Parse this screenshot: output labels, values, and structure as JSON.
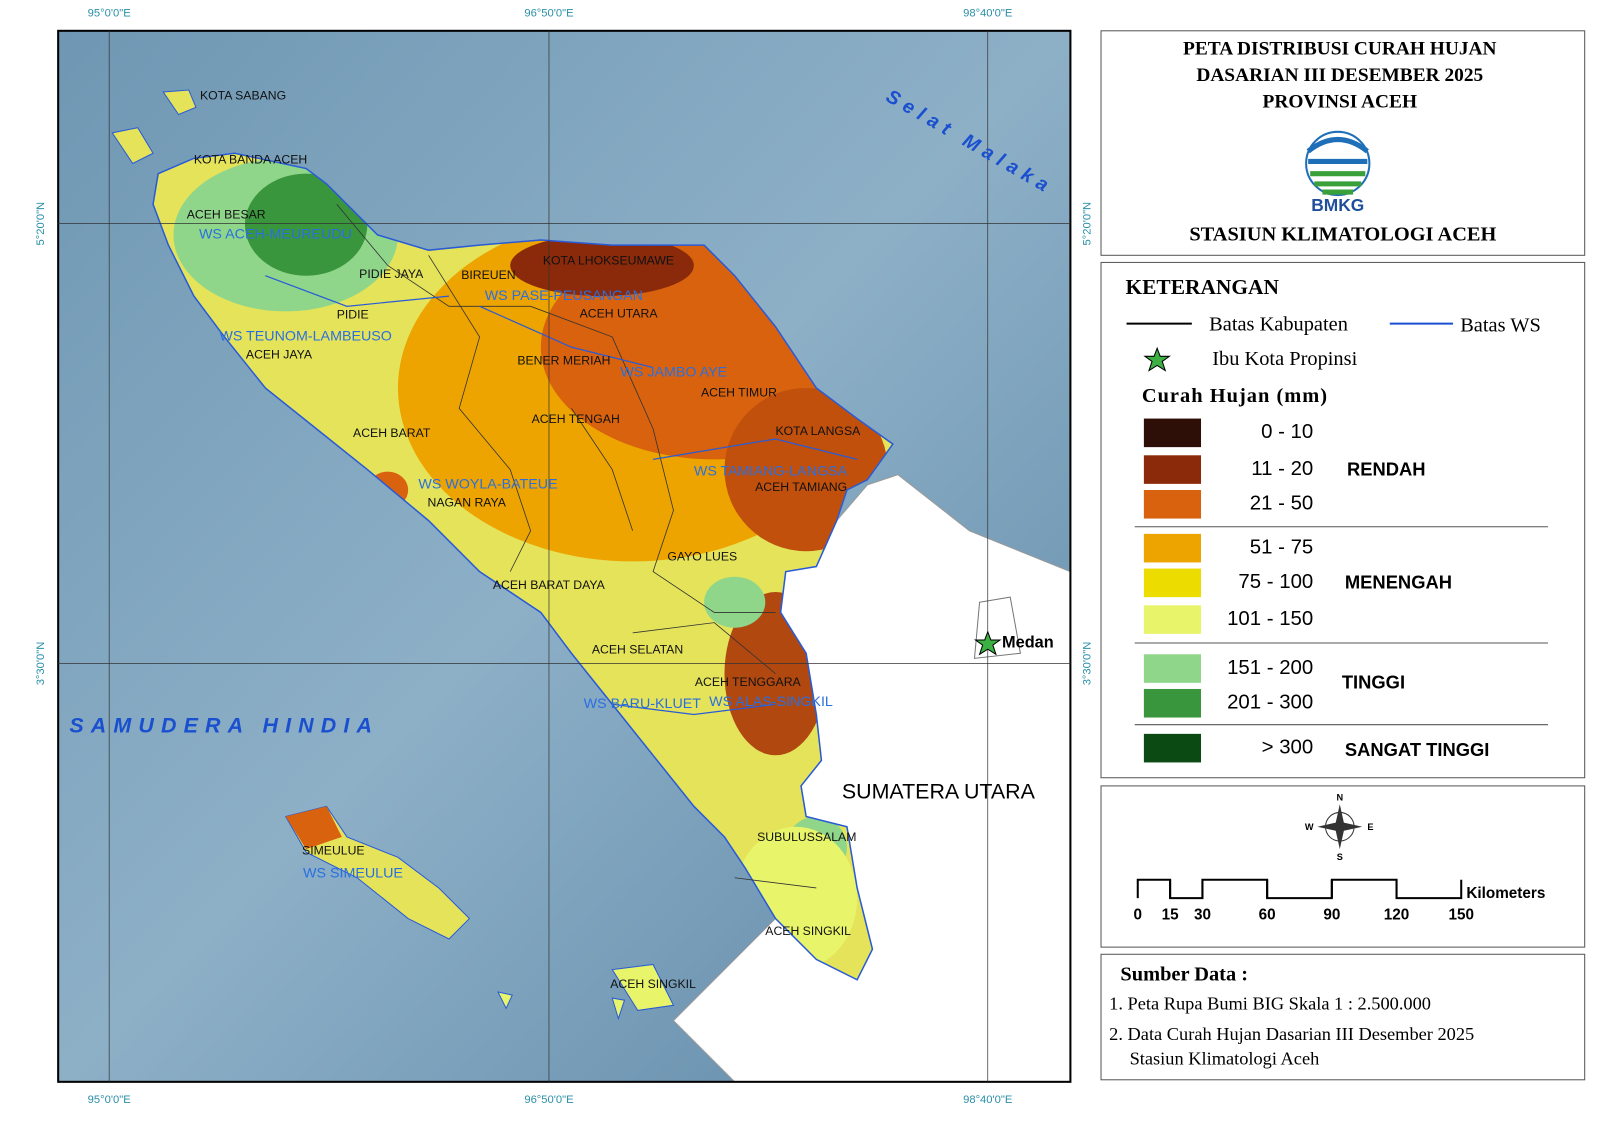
{
  "title": {
    "lines": [
      "PETA DISTRIBUSI CURAH HUJAN",
      "DASARIAN III DESEMBER 2025",
      "PROVINSI ACEH"
    ],
    "logo_text": "BMKG",
    "station": "STASIUN KLIMATOLOGI ACEH"
  },
  "graticule": {
    "longitudes": [
      "95°0'0\"E",
      "96°50'0\"E",
      "98°40'0\"E"
    ],
    "latitudes": [
      "5°20'0\"N",
      "3°30'0\"N"
    ]
  },
  "map_labels": {
    "seas": [
      "Selat Malaka",
      "SAMUDERA HINDIA"
    ],
    "regencies": [
      "KOTA SABANG",
      "KOTA BANDA ACEH",
      "ACEH BESAR",
      "PIDIE JAYA",
      "PIDIE",
      "BIREUEN",
      "KOTA LHOKSEUMAWE",
      "ACEH UTARA",
      "ACEH JAYA",
      "BENER MERIAH",
      "ACEH TIMUR",
      "ACEH TENGAH",
      "ACEH BARAT",
      "KOTA LANGSA",
      "ACEH TAMIANG",
      "NAGAN RAYA",
      "GAYO LUES",
      "ACEH BARAT DAYA",
      "ACEH SELATAN",
      "ACEH TENGGARA",
      "SIMEULUE",
      "SUBULUSSALAM",
      "ACEH SINGKIL",
      "ACEH SINGKIL"
    ],
    "watersheds": [
      "WS ACEH-MEUREUDU",
      "WS PASE-PEUSANGAN",
      "WS TEUNOM-LAMBEUSO",
      "WS JAMBO AYE",
      "WS WOYLA-BATEUE",
      "WS TAMIANG-LANGSA",
      "WS BARU-KLUET",
      "WS ALAS-SINGKIL",
      "WS SIMEULUE"
    ],
    "capital": "Medan",
    "province": "SUMATERA UTARA"
  },
  "legend": {
    "title": "KETERANGAN",
    "regency_border": "Batas Kabupaten",
    "ws_border": "Batas WS",
    "capital": "Ibu Kota Propinsi",
    "rain_title": "Curah Hujan (mm)",
    "classes": [
      {
        "range": "0 - 10",
        "color": "#2d0f08"
      },
      {
        "range": "11 - 20",
        "color": "#8a2a0a"
      },
      {
        "range": "21 - 50",
        "color": "#d8620e"
      },
      {
        "range": "51 - 75",
        "color": "#eda400"
      },
      {
        "range": "75 - 100",
        "color": "#ecdc00"
      },
      {
        "range": "101 - 150",
        "color": "#e8f56a"
      },
      {
        "range": "151 - 200",
        "color": "#8fd68b"
      },
      {
        "range": "201 - 300",
        "color": "#3a963c"
      },
      {
        "range": "> 300",
        "color": "#0b4a12"
      }
    ],
    "groups": [
      "RENDAH",
      "MENENGAH",
      "TINGGI",
      "SANGAT TINGGI"
    ]
  },
  "compass": {
    "n": "N",
    "e": "E",
    "s": "S",
    "w": "W"
  },
  "scale_bar": {
    "ticks": [
      0,
      15,
      30,
      60,
      90,
      120,
      150
    ],
    "unit": "Kilometers"
  },
  "source": {
    "title": "Sumber Data :",
    "lines": [
      "1. Peta Rupa Bumi BIG Skala 1 : 2.500.000",
      "2. Data Curah Hujan Dasarian III Desember 2025",
      "Stasiun Klimatologi Aceh"
    ]
  }
}
